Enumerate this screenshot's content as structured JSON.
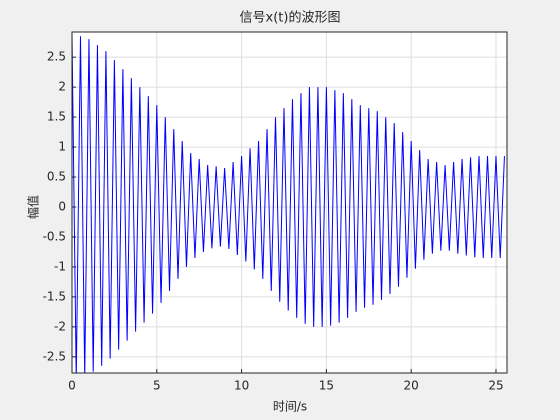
{
  "chart_data": {
    "type": "line",
    "title": "信号x(t)的波形图",
    "x_label": "时间/s",
    "y_label": "幅值",
    "color": "#0000ff",
    "grid": true,
    "xlim": [
      0,
      25.65
    ],
    "ylim": [
      -2.77,
      2.92
    ],
    "xticks": [
      0,
      5,
      10,
      15,
      20,
      25
    ],
    "yticks": [
      -2.5,
      -2,
      -1.5,
      -1,
      -0.5,
      0,
      0.5,
      1,
      1.5,
      2,
      2.5
    ],
    "x": [
      0,
      0.25,
      0.5,
      0.75,
      1,
      1.25,
      1.5,
      1.75,
      2,
      2.25,
      2.5,
      2.75,
      3,
      3.25,
      3.5,
      3.75,
      4,
      4.25,
      4.5,
      4.75,
      5,
      5.25,
      5.5,
      5.75,
      6,
      6.25,
      6.5,
      6.75,
      7,
      7.25,
      7.5,
      7.75,
      8,
      8.25,
      8.5,
      8.75,
      9,
      9.25,
      9.5,
      9.75,
      10,
      10.25,
      10.5,
      10.75,
      11,
      11.25,
      11.5,
      11.75,
      12,
      12.25,
      12.5,
      12.75,
      13,
      13.25,
      13.5,
      13.75,
      14,
      14.25,
      14.5,
      14.75,
      15,
      15.25,
      15.5,
      15.75,
      16,
      16.25,
      16.5,
      16.75,
      17,
      17.25,
      17.5,
      17.75,
      18,
      18.25,
      18.5,
      18.75,
      19,
      19.25,
      19.5,
      19.75,
      20,
      20.25,
      20.5,
      20.75,
      21,
      21.25,
      21.5,
      21.75,
      22,
      22.25,
      22.5,
      22.75,
      23,
      23.25,
      23.5,
      23.75,
      24,
      24.25,
      24.5,
      24.75,
      25,
      25.25,
      25.5
    ],
    "values": [
      2.9,
      -2.88,
      2.85,
      -2.83,
      2.8,
      -2.75,
      2.7,
      -2.65,
      2.6,
      -2.53,
      2.45,
      -2.38,
      2.3,
      -2.23,
      2.15,
      -2.08,
      2.0,
      -1.93,
      1.85,
      -1.78,
      1.7,
      -1.6,
      1.5,
      -1.4,
      1.3,
      -1.2,
      1.1,
      -1.0,
      0.9,
      -0.85,
      0.8,
      -0.75,
      0.7,
      -0.69,
      0.68,
      -0.66,
      0.65,
      -0.7,
      0.75,
      -0.8,
      0.85,
      -0.91,
      0.98,
      -1.04,
      1.1,
      -1.2,
      1.3,
      -1.4,
      1.5,
      -1.58,
      1.65,
      -1.73,
      1.8,
      -1.85,
      1.9,
      -1.95,
      2.0,
      -2.0,
      2.0,
      -2.0,
      2.0,
      -1.98,
      1.95,
      -1.93,
      1.9,
      -1.85,
      1.8,
      -1.75,
      1.7,
      -1.68,
      1.65,
      -1.63,
      1.6,
      -1.55,
      1.5,
      -1.45,
      1.4,
      -1.33,
      1.25,
      -1.18,
      1.1,
      -1.03,
      0.95,
      -0.88,
      0.8,
      -0.78,
      0.75,
      -0.73,
      0.7,
      -0.73,
      0.75,
      -0.78,
      0.8,
      -0.81,
      0.83,
      -0.84,
      0.85,
      -0.85,
      0.85,
      -0.85,
      0.85,
      -0.85,
      0.85
    ]
  }
}
